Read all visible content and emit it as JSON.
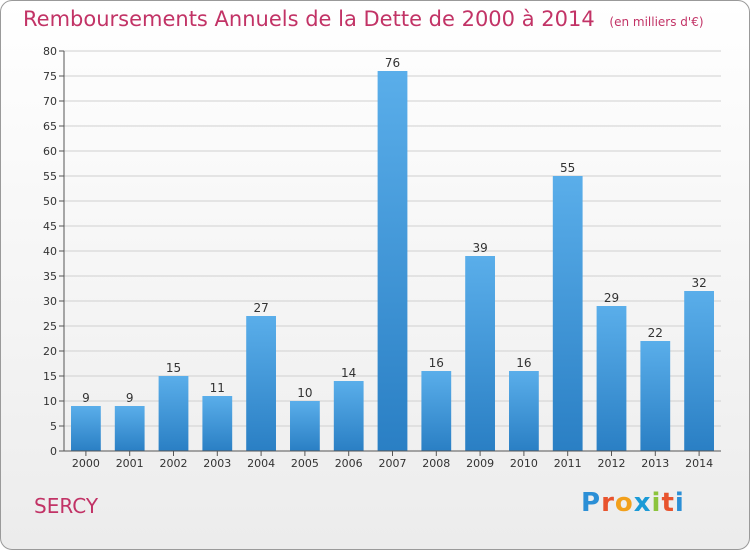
{
  "header": {
    "title": "Remboursements Annuels de la Dette de 2000 à 2014",
    "unit": "(en milliers d'€)"
  },
  "footer": {
    "commune": "SERCY",
    "logo_letters": [
      "P",
      "r",
      "o",
      "x",
      "i",
      "t",
      "i"
    ],
    "logo_colors": [
      "#2b8fd6",
      "#e8532d",
      "#f2a01b",
      "#1a9ad6",
      "#8cc43c",
      "#e8532d",
      "#2b8fd6"
    ]
  },
  "colors": {
    "title": "#c23366",
    "bar_light": "#5aaeea",
    "bar_dark": "#2a7fc4",
    "grid": "#d0d0d0"
  },
  "chart_data": {
    "type": "bar",
    "title": "Remboursements Annuels de la Dette de 2000 à 2014",
    "ylabel": "",
    "xlabel": "",
    "ylim": [
      0,
      80
    ],
    "yticks": [
      0,
      5,
      10,
      15,
      20,
      25,
      30,
      35,
      40,
      45,
      50,
      55,
      60,
      65,
      70,
      75,
      80
    ],
    "categories": [
      "2000",
      "2001",
      "2002",
      "2003",
      "2004",
      "2005",
      "2006",
      "2007",
      "2008",
      "2009",
      "2010",
      "2011",
      "2012",
      "2013",
      "2014"
    ],
    "values": [
      9,
      9,
      15,
      11,
      27,
      10,
      14,
      76,
      16,
      39,
      16,
      55,
      29,
      22,
      32
    ]
  }
}
